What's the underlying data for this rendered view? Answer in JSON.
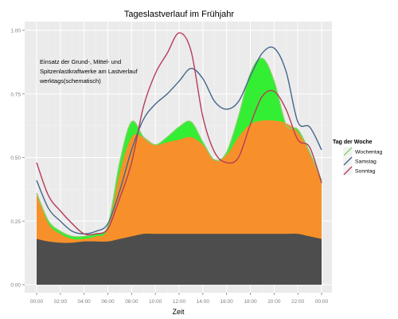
{
  "chart_data": {
    "type": "area",
    "title": "Tageslastverlauf im Frühjahr",
    "xlabel": "Zeit",
    "ylabel": "",
    "xlim": [
      0,
      24
    ],
    "ylim": [
      0,
      1.05
    ],
    "x_ticks": [
      "00:00",
      "02:00",
      "04:00",
      "06:00",
      "08:00",
      "10:00",
      "12:00",
      "14:00",
      "16:00",
      "18:00",
      "20:00",
      "22:00",
      "00:00"
    ],
    "y_ticks": [
      "0.00",
      "0.25",
      "0.50",
      "0.75",
      "1.00"
    ],
    "y_tick_values": [
      0,
      0.25,
      0.5,
      0.75,
      1.0
    ],
    "annotation_lines": [
      "Einsatz der Grund-, Mittel- und",
      "Spitzenlastkraftwerke am Lastverlauf",
      "werktags(schematisch)"
    ],
    "grid": true,
    "legend": {
      "title": "Tag der Woche",
      "placement": "right"
    },
    "x": [
      0,
      1,
      2,
      3,
      4,
      5,
      6,
      7,
      8,
      9,
      10,
      11,
      12,
      13,
      14,
      15,
      16,
      17,
      18,
      19,
      20,
      21,
      22,
      23,
      24
    ],
    "areas": [
      {
        "key": "spitzenlast",
        "color": "#33ee33",
        "values": [
          0.36,
          0.25,
          0.21,
          0.19,
          0.19,
          0.2,
          0.23,
          0.48,
          0.64,
          0.58,
          0.55,
          0.58,
          0.62,
          0.64,
          0.56,
          0.49,
          0.52,
          0.66,
          0.83,
          0.89,
          0.8,
          0.63,
          0.61,
          0.52,
          0.41
        ]
      },
      {
        "key": "mittellast",
        "color": "#f7902a",
        "values": [
          0.36,
          0.24,
          0.2,
          0.18,
          0.18,
          0.19,
          0.22,
          0.44,
          0.58,
          0.58,
          0.55,
          0.56,
          0.57,
          0.58,
          0.55,
          0.49,
          0.51,
          0.58,
          0.63,
          0.645,
          0.645,
          0.635,
          0.6,
          0.52,
          0.4
        ]
      },
      {
        "key": "grundlast",
        "color": "#4d4d4d",
        "values": [
          0.18,
          0.17,
          0.165,
          0.165,
          0.17,
          0.17,
          0.17,
          0.18,
          0.19,
          0.2,
          0.2,
          0.2,
          0.2,
          0.2,
          0.2,
          0.2,
          0.2,
          0.2,
          0.2,
          0.2,
          0.2,
          0.2,
          0.2,
          0.19,
          0.18
        ]
      }
    ],
    "series": [
      {
        "name": "Wochentag",
        "color": "#80d266",
        "values": [
          0.36,
          0.25,
          0.21,
          0.19,
          0.19,
          0.2,
          0.23,
          0.48,
          0.64,
          0.58,
          0.55,
          0.58,
          0.62,
          0.64,
          0.56,
          0.49,
          0.52,
          0.66,
          0.83,
          0.89,
          0.8,
          0.63,
          0.61,
          0.52,
          0.41
        ]
      },
      {
        "name": "Samstag",
        "color": "#43658c",
        "values": [
          0.41,
          0.3,
          0.25,
          0.21,
          0.2,
          0.21,
          0.24,
          0.37,
          0.53,
          0.65,
          0.71,
          0.75,
          0.8,
          0.85,
          0.81,
          0.72,
          0.69,
          0.72,
          0.82,
          0.91,
          0.93,
          0.84,
          0.64,
          0.62,
          0.53
        ]
      },
      {
        "name": "Sonntag",
        "color": "#b43c5a",
        "values": [
          0.48,
          0.35,
          0.29,
          0.24,
          0.2,
          0.2,
          0.22,
          0.34,
          0.48,
          0.7,
          0.83,
          0.91,
          0.99,
          0.92,
          0.66,
          0.52,
          0.48,
          0.5,
          0.63,
          0.74,
          0.76,
          0.69,
          0.57,
          0.54,
          0.4
        ]
      }
    ]
  }
}
